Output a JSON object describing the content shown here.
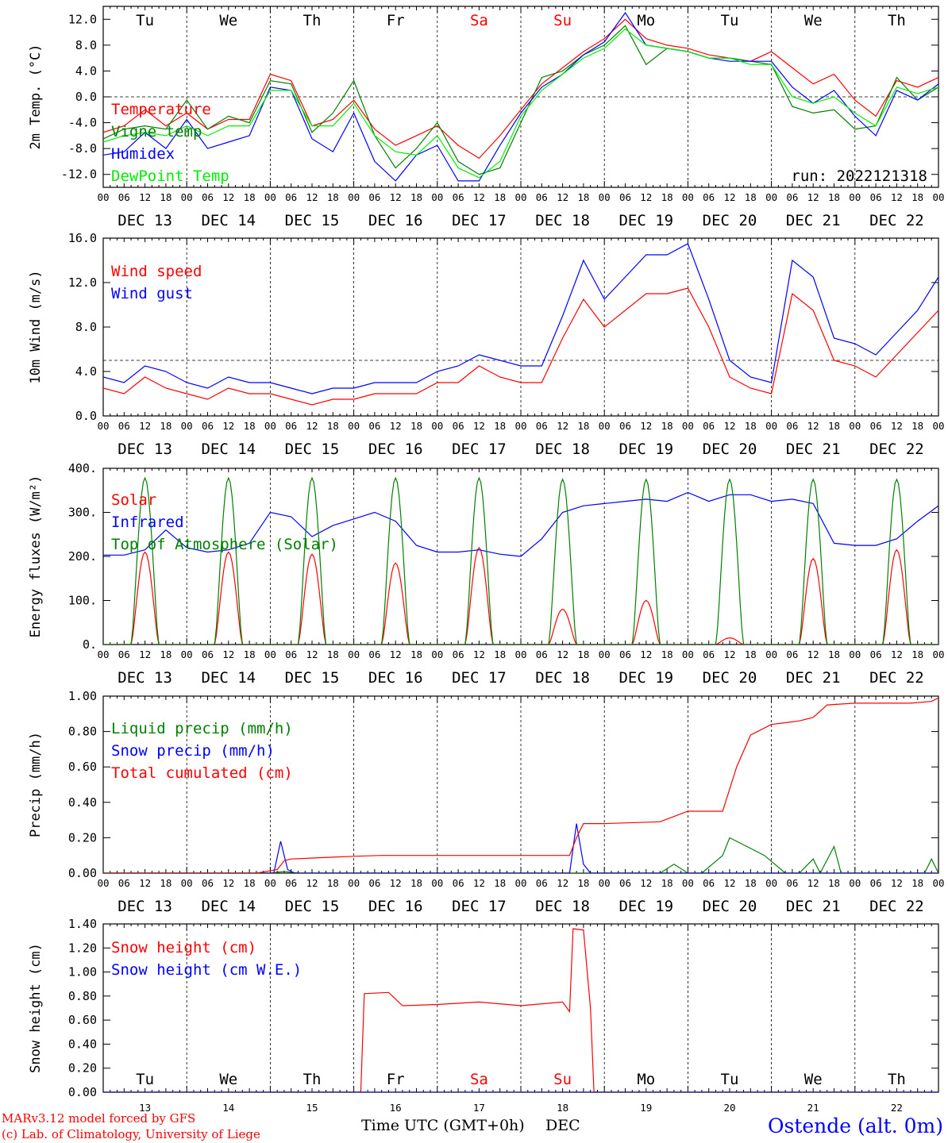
{
  "colors": {
    "red": "#ff0000",
    "green": "#008000",
    "blue": "#0000ff",
    "lime": "#00ee00",
    "black": "#000000"
  },
  "time_axis": {
    "hour_labels": [
      "00",
      "06",
      "12",
      "18"
    ],
    "end_label": "00",
    "dates": [
      "DEC 13",
      "DEC 14",
      "DEC 15",
      "DEC 16",
      "DEC 17",
      "DEC 18",
      "DEC 19",
      "DEC 20",
      "DEC 21",
      "DEC 22"
    ],
    "weekdays": [
      {
        "label": "Tu",
        "color": "black"
      },
      {
        "label": "We",
        "color": "black"
      },
      {
        "label": "Th",
        "color": "black"
      },
      {
        "label": "Fr",
        "color": "black"
      },
      {
        "label": "Sa",
        "color": "red"
      },
      {
        "label": "Su",
        "color": "red"
      },
      {
        "label": "Mo",
        "color": "black"
      },
      {
        "label": "Tu",
        "color": "black"
      },
      {
        "label": "We",
        "color": "black"
      },
      {
        "label": "Th",
        "color": "black"
      }
    ],
    "day_numbers": [
      "13",
      "14",
      "15",
      "16",
      "17",
      "18",
      "19",
      "20",
      "21",
      "22"
    ],
    "xlabel": "Time UTC (GMT+0h)",
    "xlabel_suffix": "DEC"
  },
  "footer": {
    "model": "MARv3.12 model forced by GFS",
    "copyright": "(c) Lab. of Climatology, University of Liege",
    "station": "Ostende (alt. 0m)"
  },
  "chart_data": [
    {
      "type": "line",
      "ylabel": "2m Temp. (°C)",
      "ylim": [
        -14,
        14
      ],
      "yticks": [
        "12.0",
        "8.0",
        "4.0",
        "0.0",
        "-4.0",
        "-8.0",
        "-12.0"
      ],
      "ytick_values": [
        12,
        8,
        4,
        0,
        -4,
        -8,
        -12
      ],
      "ref_line": 0,
      "run": "run: 2022121318",
      "x_unit": "hours since DEC 13 00 UTC",
      "series": [
        {
          "name": "Temperature",
          "color": "red",
          "x": [
            0,
            6,
            12,
            18,
            24,
            30,
            36,
            42,
            48,
            54,
            60,
            66,
            72,
            78,
            84,
            90,
            96,
            102,
            108,
            114,
            120,
            126,
            132,
            138,
            144,
            150,
            156,
            162,
            168,
            174,
            180,
            186,
            192,
            198,
            204,
            210,
            216,
            222,
            228,
            234,
            240
          ],
          "values": [
            -5.5,
            -4.5,
            -2,
            -4.5,
            -2.5,
            -5,
            -3.5,
            -3.5,
            3.5,
            2.5,
            -4.5,
            -3.5,
            -0.5,
            -5,
            -7.5,
            -6,
            -4.5,
            -7.5,
            -9.5,
            -6,
            -2,
            2,
            4.5,
            7,
            9,
            12,
            9,
            8,
            7.5,
            6.5,
            6,
            5.5,
            7,
            4.5,
            2,
            3.5,
            -0.5,
            -3,
            2.5,
            1.5,
            3
          ]
        },
        {
          "name": "Vigne temp",
          "color": "green",
          "x": [
            0,
            6,
            12,
            18,
            24,
            30,
            36,
            42,
            48,
            54,
            60,
            66,
            72,
            78,
            84,
            90,
            96,
            102,
            108,
            114,
            120,
            126,
            132,
            138,
            144,
            150,
            156,
            162,
            168,
            174,
            180,
            186,
            192,
            198,
            204,
            210,
            216,
            222,
            228,
            234,
            240
          ],
          "values": [
            -6.5,
            -5,
            -4.5,
            -5,
            -0.5,
            -5,
            -3,
            -4,
            2.5,
            2,
            -5.5,
            -2.5,
            2.5,
            -6,
            -11,
            -8,
            -4,
            -10,
            -12,
            -11,
            -4,
            3,
            4,
            6.5,
            8,
            11,
            5,
            7.5,
            7,
            6,
            6,
            5.5,
            5,
            -1.5,
            -2.5,
            -2,
            -5,
            -4.5,
            3,
            -0.5,
            1.5
          ]
        },
        {
          "name": "Humidex",
          "color": "blue",
          "x": [
            0,
            6,
            12,
            18,
            24,
            30,
            36,
            42,
            48,
            54,
            60,
            66,
            72,
            78,
            84,
            90,
            96,
            102,
            108,
            114,
            120,
            126,
            132,
            138,
            144,
            150,
            156,
            162,
            168,
            174,
            180,
            186,
            192,
            198,
            204,
            210,
            216,
            222,
            228,
            234,
            240
          ],
          "values": [
            -9,
            -8.5,
            -5.5,
            -8,
            -3.5,
            -8,
            -7,
            -6,
            1.5,
            1,
            -6.5,
            -8.5,
            -2.5,
            -10,
            -13,
            -9,
            -7.5,
            -13,
            -13,
            -7.5,
            -2.5,
            1.5,
            3.5,
            6.5,
            8.5,
            13,
            8,
            7.5,
            7,
            6,
            5.5,
            5.5,
            5.5,
            1.5,
            -1,
            1,
            -3,
            -6,
            1,
            -0.5,
            2
          ]
        },
        {
          "name": "DewPoint Temp",
          "color": "lime",
          "x": [
            0,
            6,
            12,
            18,
            24,
            30,
            36,
            42,
            48,
            54,
            60,
            66,
            72,
            78,
            84,
            90,
            96,
            102,
            108,
            114,
            120,
            126,
            132,
            138,
            144,
            150,
            156,
            162,
            168,
            174,
            180,
            186,
            192,
            198,
            204,
            210,
            216,
            222,
            228,
            234,
            240
          ],
          "values": [
            -7,
            -6,
            -5.5,
            -6,
            -4.5,
            -6,
            -4.5,
            -4.5,
            1,
            1,
            -4.5,
            -4.5,
            -1,
            -6,
            -8.5,
            -9,
            -6,
            -11,
            -12.5,
            -10,
            -3,
            1,
            3.5,
            6,
            7.5,
            10.5,
            8,
            7.5,
            7,
            6,
            6,
            5,
            5,
            0,
            -1,
            0,
            -2.5,
            -4.5,
            1.5,
            0.5,
            1.5
          ]
        }
      ]
    },
    {
      "type": "line",
      "ylabel": "10m Wind (m/s)",
      "ylim": [
        0,
        16
      ],
      "yticks": [
        "16.0",
        "12.0",
        "8.0",
        "4.0",
        "0.0"
      ],
      "ytick_values": [
        16,
        12,
        8,
        4,
        0
      ],
      "ref_line": 5,
      "x_unit": "hours since DEC 13 00 UTC",
      "series": [
        {
          "name": "Wind speed",
          "color": "red",
          "x": [
            0,
            6,
            12,
            18,
            24,
            30,
            36,
            42,
            48,
            54,
            60,
            66,
            72,
            78,
            84,
            90,
            96,
            102,
            108,
            114,
            120,
            126,
            132,
            138,
            144,
            150,
            156,
            162,
            168,
            174,
            180,
            186,
            192,
            198,
            204,
            210,
            216,
            222,
            228,
            234,
            240
          ],
          "values": [
            2.5,
            2,
            3.5,
            2.5,
            2,
            1.5,
            2.5,
            2,
            2,
            1.5,
            1,
            1.5,
            1.5,
            2,
            2,
            2,
            3,
            3,
            4.5,
            3.5,
            3,
            3,
            7,
            10.5,
            8,
            9.5,
            11,
            11,
            11.5,
            8,
            3.5,
            2.5,
            2,
            11,
            9.5,
            5,
            4.5,
            3.5,
            5.5,
            7.5,
            9.5
          ]
        },
        {
          "name": "Wind gust",
          "color": "blue",
          "x": [
            0,
            6,
            12,
            18,
            24,
            30,
            36,
            42,
            48,
            54,
            60,
            66,
            72,
            78,
            84,
            90,
            96,
            102,
            108,
            114,
            120,
            126,
            132,
            138,
            144,
            150,
            156,
            162,
            168,
            174,
            180,
            186,
            192,
            198,
            204,
            210,
            216,
            222,
            228,
            234,
            240
          ],
          "values": [
            3.5,
            3,
            4.5,
            4,
            3,
            2.5,
            3.5,
            3,
            3,
            2.5,
            2,
            2.5,
            2.5,
            3,
            3,
            3,
            4,
            4.5,
            5.5,
            5,
            4.5,
            4.5,
            9,
            14,
            10.5,
            12.5,
            14.5,
            14.5,
            15.5,
            10.5,
            5,
            3.5,
            3,
            14,
            12.5,
            7,
            6.5,
            5.5,
            7.5,
            9.5,
            12.5
          ]
        }
      ]
    },
    {
      "type": "line",
      "ylabel": "Energy fluxes (W/m²)",
      "ylim": [
        0,
        400
      ],
      "yticks": [
        "400.",
        "300.",
        "200.",
        "100.",
        "0."
      ],
      "ytick_values": [
        400,
        300,
        200,
        100,
        0
      ],
      "x_unit": "hours since DEC 13 00 UTC",
      "series": [
        {
          "name": "Solar",
          "color": "red",
          "daily_peak_hour": 12,
          "half_width_hours": 4,
          "daily_peaks": [
            210,
            210,
            205,
            185,
            220,
            80,
            100,
            15,
            195,
            215
          ]
        },
        {
          "name": "Infrared",
          "color": "blue",
          "x": [
            0,
            6,
            12,
            18,
            24,
            30,
            36,
            42,
            48,
            54,
            60,
            66,
            72,
            78,
            84,
            90,
            96,
            102,
            108,
            114,
            120,
            126,
            132,
            138,
            144,
            150,
            156,
            162,
            168,
            174,
            180,
            186,
            192,
            198,
            204,
            210,
            216,
            222,
            228,
            234,
            240
          ],
          "values": [
            203,
            203,
            215,
            260,
            220,
            210,
            215,
            230,
            300,
            290,
            245,
            270,
            285,
            300,
            280,
            225,
            210,
            210,
            215,
            205,
            200,
            240,
            300,
            315,
            320,
            325,
            330,
            325,
            345,
            325,
            340,
            340,
            325,
            330,
            320,
            230,
            225,
            225,
            240,
            280,
            315
          ]
        },
        {
          "name": "Top of Atmosphere (Solar)",
          "color": "green",
          "daily_peak_hour": 12,
          "half_width_hours": 4,
          "daily_peaks": [
            378,
            378,
            378,
            378,
            378,
            375,
            375,
            375,
            375,
            375
          ]
        }
      ]
    },
    {
      "type": "line",
      "ylabel": "Precip (mm/h)",
      "ylim": [
        0,
        1
      ],
      "yticks": [
        "1.00",
        "0.80",
        "0.60",
        "0.40",
        "0.20",
        "0.00"
      ],
      "ytick_values": [
        1,
        0.8,
        0.6,
        0.4,
        0.2,
        0
      ],
      "x_unit": "hours since DEC 13 00 UTC",
      "series": [
        {
          "name": "Liquid precip (mm/h)",
          "color": "green",
          "x": [
            0,
            48,
            52,
            56,
            60,
            140,
            144,
            160,
            164,
            168,
            172,
            178,
            180,
            190,
            196,
            200,
            204,
            206,
            210,
            212,
            216,
            232,
            236,
            238,
            240
          ],
          "values": [
            0,
            0,
            0.01,
            0,
            0,
            0,
            0,
            0,
            0.05,
            0,
            0,
            0.1,
            0.2,
            0.1,
            0,
            0,
            0.08,
            0,
            0.15,
            0,
            0,
            0,
            0,
            0.08,
            0
          ]
        },
        {
          "name": "Snow precip (mm/h)",
          "color": "blue",
          "x": [
            0,
            49,
            51,
            53,
            55,
            134,
            136,
            138,
            140,
            240
          ],
          "values": [
            0,
            0,
            0.18,
            0.02,
            0,
            0,
            0.28,
            0.05,
            0,
            0
          ]
        },
        {
          "name": "Total cumulated (cm)",
          "color": "red",
          "x": [
            0,
            44,
            50,
            52,
            54,
            60,
            66,
            72,
            80,
            96,
            120,
            134,
            136,
            138,
            144,
            160,
            168,
            178,
            182,
            186,
            192,
            196,
            200,
            204,
            208,
            216,
            232,
            238,
            240
          ],
          "values": [
            0,
            0,
            0.02,
            0.07,
            0.08,
            0.085,
            0.09,
            0.095,
            0.1,
            0.1,
            0.1,
            0.1,
            0.2,
            0.28,
            0.28,
            0.29,
            0.35,
            0.35,
            0.6,
            0.78,
            0.84,
            0.85,
            0.86,
            0.88,
            0.95,
            0.96,
            0.96,
            0.97,
            0.99
          ]
        }
      ]
    },
    {
      "type": "line",
      "ylabel": "Snow height (cm)",
      "ylim": [
        0,
        1.4
      ],
      "yticks": [
        "1.40",
        "1.20",
        "1.00",
        "0.80",
        "0.60",
        "0.40",
        "0.20",
        "0.00"
      ],
      "ytick_values": [
        1.4,
        1.2,
        1,
        0.8,
        0.6,
        0.4,
        0.2,
        0
      ],
      "x_unit": "hours since DEC 13 00 UTC",
      "series": [
        {
          "name": "Snow height (cm)",
          "color": "red",
          "x": [
            0,
            74,
            75,
            82,
            86,
            96,
            108,
            120,
            132,
            134,
            135,
            138,
            140,
            141,
            240
          ],
          "values": [
            0,
            0,
            0.82,
            0.83,
            0.72,
            0.73,
            0.75,
            0.72,
            0.75,
            0.67,
            1.36,
            1.35,
            0.7,
            0,
            0
          ]
        },
        {
          "name": "Snow height (cm W.E.)",
          "color": "blue",
          "x": [
            0,
            240
          ],
          "values": [
            0,
            0
          ]
        }
      ]
    }
  ]
}
